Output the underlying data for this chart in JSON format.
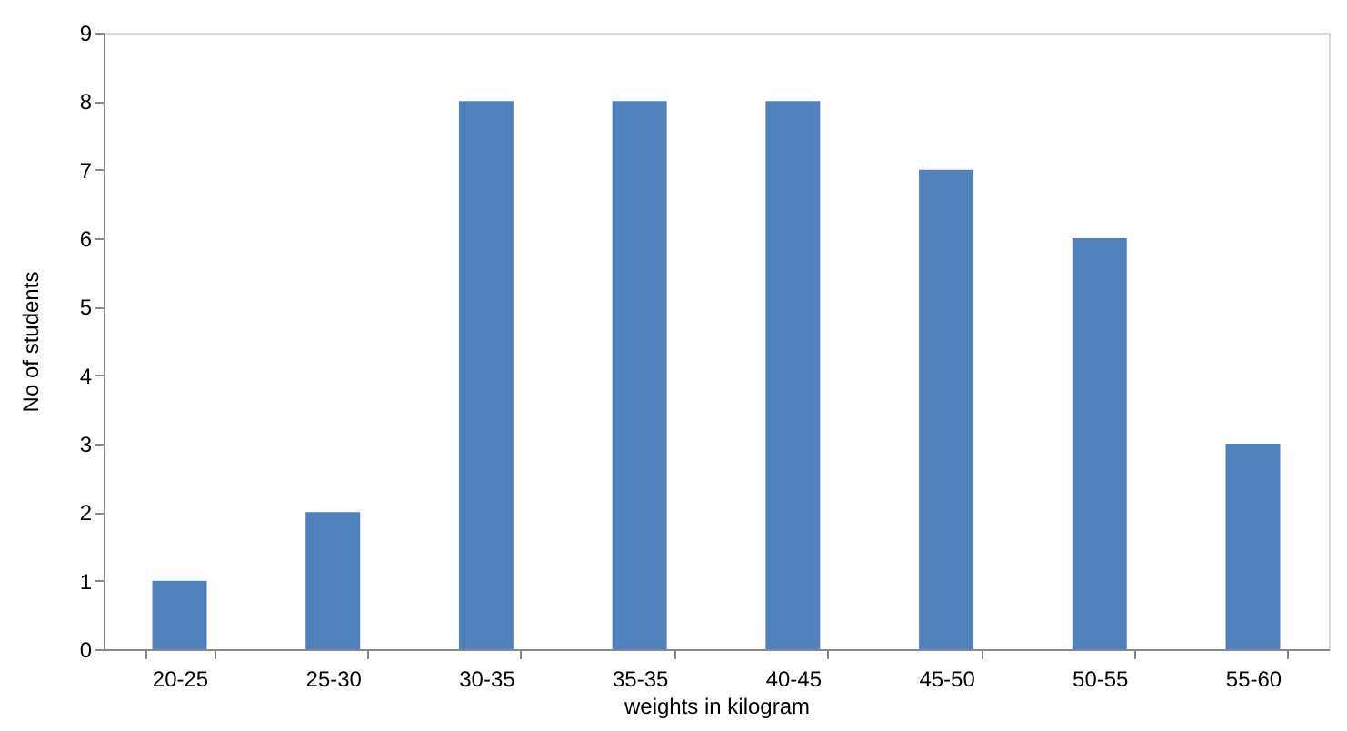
{
  "chart_data": {
    "type": "bar",
    "xlabel": "weights in kilogram",
    "ylabel": "No of students",
    "categories": [
      "20-25",
      "25-30",
      "30-35",
      "35-35",
      "40-45",
      "45-50",
      "50-55",
      "55-60"
    ],
    "values": [
      1,
      2,
      8,
      8,
      8,
      7,
      6,
      3
    ],
    "color": "#4f81bd",
    "ylim": [
      0,
      9
    ],
    "yticks": [
      0,
      1,
      2,
      3,
      4,
      5,
      6,
      7,
      8,
      9
    ],
    "grid": false
  }
}
